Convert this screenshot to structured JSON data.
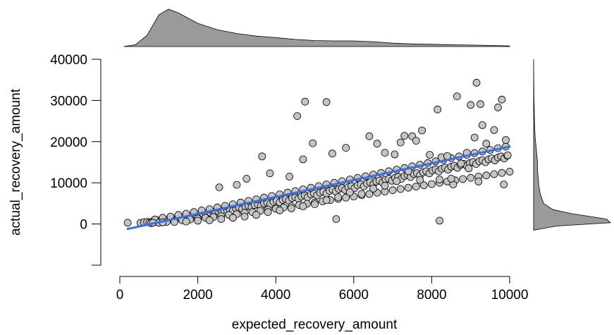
{
  "colors": {
    "point_fill": "#c4c4c4",
    "point_stroke": "#000000",
    "density_fill": "#9a9a9a",
    "regression_line": "#3a6fe0"
  },
  "chart_data": {
    "type": "scatter",
    "title": "",
    "xlabel": "expected_recovery_amount",
    "ylabel": "actual_recovery_amount",
    "xlim": [
      0,
      10000
    ],
    "ylim": [
      -10000,
      40000
    ],
    "xticks": [
      0,
      2000,
      4000,
      6000,
      8000,
      10000
    ],
    "yticks": [
      0,
      10000,
      20000,
      30000,
      40000
    ],
    "xtick_labels": [
      "0",
      "2000",
      "4000",
      "6000",
      "8000",
      "10000"
    ],
    "ytick_labels": [
      "0",
      "10000",
      "20000",
      "30000",
      "40000"
    ],
    "grid": false,
    "marginal_density": {
      "x": "top",
      "y": "right"
    },
    "regression_line": {
      "x": [
        200,
        10000
      ],
      "y": [
        -1200,
        18800
      ]
    },
    "x_density": [
      [
        100,
        0.0
      ],
      [
        400,
        0.05
      ],
      [
        700,
        0.3
      ],
      [
        1000,
        0.85
      ],
      [
        1250,
        1.0
      ],
      [
        1500,
        0.9
      ],
      [
        2000,
        0.62
      ],
      [
        2500,
        0.45
      ],
      [
        3000,
        0.35
      ],
      [
        3500,
        0.28
      ],
      [
        4000,
        0.24
      ],
      [
        4500,
        0.19
      ],
      [
        5000,
        0.16
      ],
      [
        5500,
        0.15
      ],
      [
        6000,
        0.15
      ],
      [
        6500,
        0.13
      ],
      [
        7000,
        0.09
      ],
      [
        7500,
        0.07
      ],
      [
        8000,
        0.06
      ],
      [
        8500,
        0.05
      ],
      [
        9000,
        0.04
      ],
      [
        9500,
        0.03
      ],
      [
        10000,
        0.015
      ]
    ],
    "y_density": [
      [
        -1500,
        0.0
      ],
      [
        -500,
        0.3
      ],
      [
        300,
        1.0
      ],
      [
        1200,
        0.95
      ],
      [
        2500,
        0.5
      ],
      [
        3500,
        0.25
      ],
      [
        5000,
        0.13
      ],
      [
        7000,
        0.09
      ],
      [
        9000,
        0.07
      ],
      [
        11000,
        0.06
      ],
      [
        13000,
        0.05
      ],
      [
        15000,
        0.05
      ],
      [
        17000,
        0.04
      ],
      [
        19000,
        0.03
      ],
      [
        21000,
        0.02
      ],
      [
        23000,
        0.015
      ],
      [
        26000,
        0.01
      ],
      [
        30000,
        0.005
      ],
      [
        35000,
        0.002
      ],
      [
        40000,
        0.0
      ]
    ],
    "points": [
      [
        200,
        300
      ],
      [
        530,
        280
      ],
      [
        620,
        450
      ],
      [
        700,
        520
      ],
      [
        760,
        380
      ],
      [
        820,
        600
      ],
      [
        880,
        700
      ],
      [
        930,
        540
      ],
      [
        980,
        820
      ],
      [
        1040,
        900
      ],
      [
        1100,
        760
      ],
      [
        1150,
        1050
      ],
      [
        1210,
        980
      ],
      [
        1260,
        1150
      ],
      [
        1320,
        1250
      ],
      [
        1380,
        1100
      ],
      [
        1430,
        1380
      ],
      [
        1490,
        1500
      ],
      [
        1540,
        1320
      ],
      [
        1600,
        1650
      ],
      [
        1660,
        1750
      ],
      [
        1720,
        1580
      ],
      [
        1780,
        1900
      ],
      [
        1840,
        2000
      ],
      [
        1900,
        1820
      ],
      [
        1960,
        2150
      ],
      [
        2020,
        2300
      ],
      [
        2080,
        2100
      ],
      [
        2140,
        2450
      ],
      [
        2200,
        2600
      ],
      [
        2270,
        2350
      ],
      [
        2330,
        2750
      ],
      [
        2400,
        2900
      ],
      [
        2460,
        2650
      ],
      [
        2530,
        3100
      ],
      [
        2600,
        3250
      ],
      [
        2680,
        2950
      ],
      [
        2750,
        3400
      ],
      [
        2820,
        3600
      ],
      [
        2900,
        3250
      ],
      [
        2980,
        3800
      ],
      [
        3060,
        4000
      ],
      [
        3140,
        3650
      ],
      [
        3220,
        4200
      ],
      [
        3300,
        4400
      ],
      [
        3380,
        4050
      ],
      [
        3460,
        4600
      ],
      [
        3540,
        4800
      ],
      [
        3620,
        4400
      ],
      [
        3700,
        5000
      ],
      [
        3780,
        5200
      ],
      [
        3860,
        4850
      ],
      [
        3940,
        5400
      ],
      [
        4020,
        5650
      ],
      [
        4100,
        5250
      ],
      [
        4180,
        5850
      ],
      [
        4260,
        6050
      ],
      [
        4340,
        5650
      ],
      [
        4420,
        6300
      ],
      [
        4500,
        6500
      ],
      [
        4580,
        6100
      ],
      [
        4660,
        6700
      ],
      [
        4740,
        6950
      ],
      [
        4820,
        6500
      ],
      [
        4900,
        7150
      ],
      [
        4980,
        7400
      ],
      [
        5060,
        6950
      ],
      [
        5140,
        7600
      ],
      [
        5220,
        7850
      ],
      [
        5300,
        7400
      ],
      [
        5380,
        8050
      ],
      [
        5460,
        8300
      ],
      [
        5540,
        7850
      ],
      [
        5620,
        8500
      ],
      [
        5700,
        8750
      ],
      [
        5780,
        8250
      ],
      [
        5860,
        8950
      ],
      [
        5940,
        9200
      ],
      [
        6020,
        8700
      ],
      [
        6100,
        9400
      ],
      [
        6180,
        9650
      ],
      [
        6260,
        9150
      ],
      [
        6340,
        9850
      ],
      [
        6420,
        10100
      ],
      [
        6500,
        9600
      ],
      [
        6580,
        10300
      ],
      [
        6660,
        10550
      ],
      [
        6740,
        10050
      ],
      [
        6820,
        10750
      ],
      [
        6900,
        11000
      ],
      [
        6980,
        10500
      ],
      [
        7060,
        11200
      ],
      [
        7140,
        11450
      ],
      [
        7220,
        10950
      ],
      [
        7300,
        11650
      ],
      [
        7380,
        11900
      ],
      [
        7460,
        11400
      ],
      [
        7540,
        12100
      ],
      [
        7620,
        12350
      ],
      [
        7700,
        11850
      ],
      [
        7780,
        12550
      ],
      [
        7860,
        12800
      ],
      [
        7940,
        12300
      ],
      [
        8020,
        13000
      ],
      [
        8100,
        13250
      ],
      [
        8180,
        12750
      ],
      [
        8260,
        13450
      ],
      [
        8340,
        13700
      ],
      [
        8420,
        13200
      ],
      [
        8500,
        13900
      ],
      [
        8580,
        14150
      ],
      [
        8660,
        13650
      ],
      [
        8740,
        14350
      ],
      [
        8820,
        14600
      ],
      [
        8900,
        14100
      ],
      [
        8980,
        14800
      ],
      [
        9060,
        15050
      ],
      [
        9140,
        14550
      ],
      [
        9220,
        15250
      ],
      [
        9300,
        15500
      ],
      [
        9380,
        15000
      ],
      [
        9460,
        15700
      ],
      [
        9540,
        15950
      ],
      [
        9620,
        15450
      ],
      [
        9700,
        16150
      ],
      [
        9780,
        16400
      ],
      [
        9860,
        15900
      ],
      [
        9940,
        16600
      ],
      [
        800,
        200
      ],
      [
        900,
        1100
      ],
      [
        1000,
        300
      ],
      [
        1100,
        1500
      ],
      [
        1200,
        500
      ],
      [
        1300,
        1800
      ],
      [
        1400,
        700
      ],
      [
        1500,
        2200
      ],
      [
        1600,
        900
      ],
      [
        1700,
        2500
      ],
      [
        1800,
        1100
      ],
      [
        1900,
        2900
      ],
      [
        2000,
        1300
      ],
      [
        2100,
        3300
      ],
      [
        2200,
        1500
      ],
      [
        2300,
        3600
      ],
      [
        2400,
        1700
      ],
      [
        2500,
        4000
      ],
      [
        2600,
        1900
      ],
      [
        2700,
        4400
      ],
      [
        2800,
        2200
      ],
      [
        2900,
        4800
      ],
      [
        3000,
        2400
      ],
      [
        3100,
        5200
      ],
      [
        3200,
        2700
      ],
      [
        3300,
        5600
      ],
      [
        3400,
        2900
      ],
      [
        3500,
        6000
      ],
      [
        3600,
        3200
      ],
      [
        3700,
        6400
      ],
      [
        3800,
        3500
      ],
      [
        3900,
        6800
      ],
      [
        4000,
        3700
      ],
      [
        4100,
        7200
      ],
      [
        4200,
        4000
      ],
      [
        4300,
        7600
      ],
      [
        4400,
        4300
      ],
      [
        4500,
        8000
      ],
      [
        4600,
        4600
      ],
      [
        4700,
        8400
      ],
      [
        4800,
        4900
      ],
      [
        4900,
        8800
      ],
      [
        5000,
        5200
      ],
      [
        5100,
        9200
      ],
      [
        5200,
        5500
      ],
      [
        5300,
        9600
      ],
      [
        5400,
        5800
      ],
      [
        5500,
        10000
      ],
      [
        5600,
        6100
      ],
      [
        5700,
        10400
      ],
      [
        5800,
        6400
      ],
      [
        5900,
        10800
      ],
      [
        6000,
        6700
      ],
      [
        6100,
        11200
      ],
      [
        6200,
        7000
      ],
      [
        6300,
        11600
      ],
      [
        6400,
        7300
      ],
      [
        6500,
        12000
      ],
      [
        6600,
        7600
      ],
      [
        6700,
        12400
      ],
      [
        6800,
        7900
      ],
      [
        6900,
        12800
      ],
      [
        7000,
        8200
      ],
      [
        7100,
        13200
      ],
      [
        7200,
        8500
      ],
      [
        7300,
        13600
      ],
      [
        7400,
        8800
      ],
      [
        7500,
        14000
      ],
      [
        7600,
        9100
      ],
      [
        7700,
        14400
      ],
      [
        7800,
        9400
      ],
      [
        7900,
        14800
      ],
      [
        8000,
        9700
      ],
      [
        8100,
        15200
      ],
      [
        8200,
        10000
      ],
      [
        8300,
        15600
      ],
      [
        8400,
        10300
      ],
      [
        8500,
        16000
      ],
      [
        8600,
        10600
      ],
      [
        8700,
        16400
      ],
      [
        8800,
        10900
      ],
      [
        8900,
        16800
      ],
      [
        9000,
        11200
      ],
      [
        9100,
        17200
      ],
      [
        9200,
        11500
      ],
      [
        9300,
        17600
      ],
      [
        9400,
        11800
      ],
      [
        9500,
        18000
      ],
      [
        9600,
        12100
      ],
      [
        9700,
        18400
      ],
      [
        9800,
        12400
      ],
      [
        9900,
        18800
      ],
      [
        10000,
        12700
      ],
      [
        2550,
        8900
      ],
      [
        3000,
        9500
      ],
      [
        3250,
        11000
      ],
      [
        3650,
        16400
      ],
      [
        3850,
        12300
      ],
      [
        4350,
        11500
      ],
      [
        4550,
        26200
      ],
      [
        4700,
        15700
      ],
      [
        4750,
        29700
      ],
      [
        4950,
        19600
      ],
      [
        5300,
        29600
      ],
      [
        5450,
        17100
      ],
      [
        5550,
        1200
      ],
      [
        5800,
        18500
      ],
      [
        6400,
        21300
      ],
      [
        6600,
        19500
      ],
      [
        6800,
        17300
      ],
      [
        7050,
        16900
      ],
      [
        7200,
        19800
      ],
      [
        7300,
        21400
      ],
      [
        7500,
        21300
      ],
      [
        7600,
        20200
      ],
      [
        7750,
        22700
      ],
      [
        7950,
        16800
      ],
      [
        8150,
        27800
      ],
      [
        8200,
        800
      ],
      [
        8250,
        16200
      ],
      [
        8400,
        16500
      ],
      [
        8550,
        9600
      ],
      [
        8650,
        31000
      ],
      [
        8900,
        17300
      ],
      [
        9000,
        28900
      ],
      [
        9100,
        21000
      ],
      [
        9150,
        34300
      ],
      [
        9250,
        29100
      ],
      [
        9300,
        24000
      ],
      [
        9400,
        19500
      ],
      [
        9600,
        22800
      ],
      [
        9700,
        28300
      ],
      [
        9800,
        30200
      ],
      [
        9850,
        9600
      ],
      [
        9900,
        20400
      ],
      [
        9950,
        16700
      ],
      [
        9200,
        10300
      ],
      [
        8950,
        13500
      ],
      [
        8750,
        14700
      ],
      [
        8500,
        11000
      ],
      [
        8200,
        10800
      ],
      [
        7700,
        10700
      ],
      [
        7400,
        12800
      ],
      [
        7100,
        10400
      ],
      [
        6800,
        9300
      ],
      [
        6500,
        8600
      ],
      [
        6200,
        7300
      ],
      [
        5900,
        7700
      ],
      [
        5600,
        6500
      ],
      [
        5300,
        5800
      ],
      [
        5000,
        4800
      ],
      [
        4700,
        4300
      ],
      [
        4400,
        3800
      ],
      [
        4100,
        3300
      ],
      [
        3800,
        2900
      ],
      [
        3500,
        2200
      ],
      [
        3200,
        1800
      ],
      [
        2900,
        1500
      ],
      [
        2600,
        1200
      ],
      [
        2300,
        900
      ],
      [
        2000,
        800
      ],
      [
        1700,
        600
      ],
      [
        1400,
        500
      ],
      [
        1100,
        400
      ],
      [
        850,
        300
      ]
    ]
  }
}
